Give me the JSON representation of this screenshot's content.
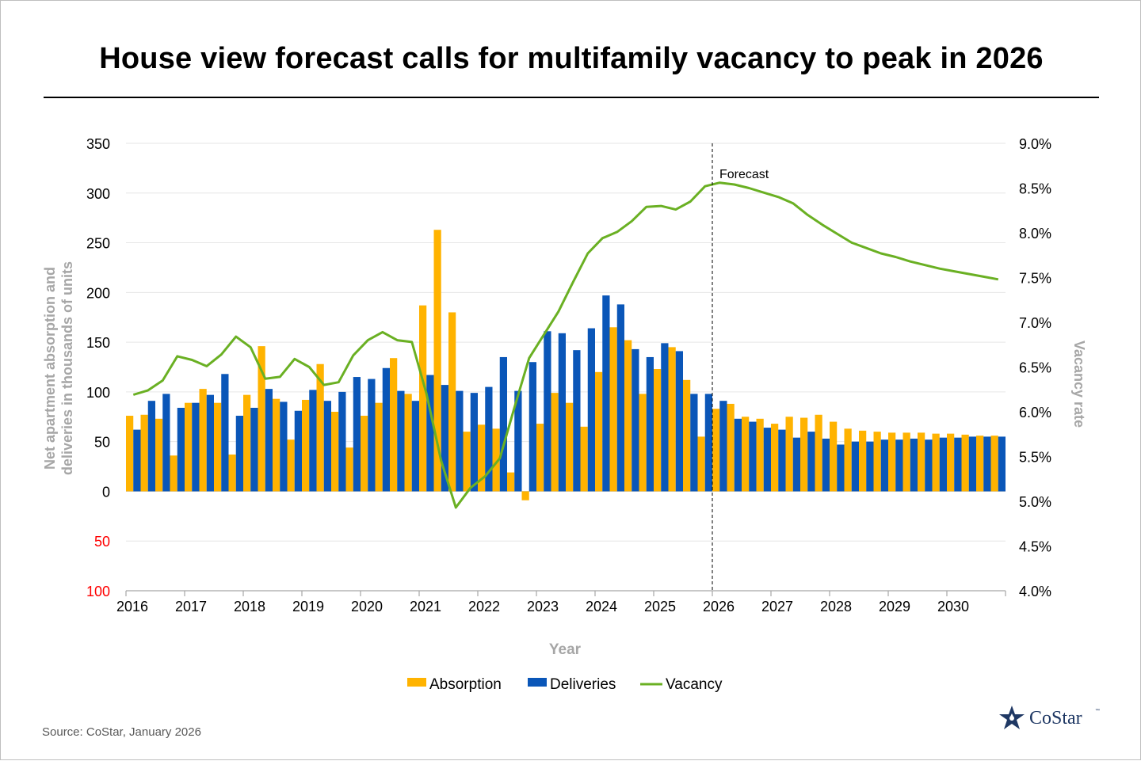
{
  "title": "House view forecast calls for multifamily vacancy to peak in 2026",
  "source": "Source: CoStar, January 2026",
  "logo": {
    "text": "CoStar",
    "tm": "™"
  },
  "colors": {
    "absorption": "#FFB300",
    "deliveries": "#0A56B8",
    "vacancy": "#6AB023",
    "negative_tick": "#FF0000",
    "axis_title": "#A6A6A6",
    "logo": "#1F3864"
  },
  "chart_data": {
    "type": "bar",
    "xlabel": "Year",
    "ylabel": "Net apartment absorption and deliveries in thousands of units",
    "y2label": "Vacancy rate",
    "ylim": [
      -100,
      350
    ],
    "yticks": [
      350,
      300,
      250,
      200,
      150,
      100,
      50,
      0,
      -50,
      -100
    ],
    "ytick_labels": [
      "350",
      "300",
      "250",
      "200",
      "150",
      "100",
      "50",
      "0",
      "50",
      "100"
    ],
    "y2lim": [
      4.0,
      9.0
    ],
    "y2tick_labels": [
      "9.0%",
      "8.5%",
      "8.0%",
      "7.5%",
      "7.0%",
      "6.5%",
      "6.0%",
      "5.5%",
      "5.0%",
      "4.5%",
      "4.0%"
    ],
    "x_tick_labels": [
      "2016",
      "2017",
      "2018",
      "2019",
      "2020",
      "2021",
      "2022",
      "2023",
      "2024",
      "2025",
      "2026",
      "2027",
      "2028",
      "2029",
      "2030"
    ],
    "forecast_label": "Forecast",
    "forecast_start_quarter": 40,
    "legend": {
      "position": "bottom",
      "entries": [
        "Absorption",
        "Deliveries",
        "Vacancy"
      ]
    },
    "grid": true,
    "quarters_per_year": 4,
    "series": [
      {
        "name": "Absorption",
        "type": "bar",
        "values": [
          76,
          77,
          73,
          36,
          89,
          103,
          89,
          37,
          97,
          146,
          93,
          52,
          92,
          128,
          80,
          44,
          76,
          89,
          134,
          98,
          187,
          263,
          180,
          60,
          67,
          63,
          19,
          -9,
          68,
          99,
          89,
          65,
          120,
          165,
          152,
          98,
          123,
          145,
          112,
          55,
          83,
          88,
          75,
          73,
          68,
          75,
          74,
          77,
          70,
          63,
          61,
          60,
          59,
          59,
          59,
          58,
          58,
          57,
          56,
          56
        ]
      },
      {
        "name": "Deliveries",
        "type": "bar",
        "values": [
          62,
          91,
          98,
          84,
          89,
          97,
          118,
          76,
          84,
          103,
          90,
          81,
          102,
          91,
          100,
          115,
          113,
          124,
          101,
          91,
          117,
          107,
          101,
          99,
          105,
          135,
          101,
          130,
          161,
          159,
          142,
          164,
          197,
          188,
          143,
          135,
          149,
          141,
          98,
          98,
          91,
          73,
          70,
          64,
          62,
          54,
          60,
          53,
          47,
          50,
          50,
          52,
          52,
          53,
          52,
          54,
          54,
          55,
          55,
          55
        ]
      },
      {
        "name": "Vacancy",
        "type": "line",
        "values": [
          6.19,
          6.24,
          6.35,
          6.62,
          6.58,
          6.51,
          6.64,
          6.84,
          6.72,
          6.37,
          6.39,
          6.59,
          6.5,
          6.3,
          6.33,
          6.63,
          6.8,
          6.89,
          6.8,
          6.78,
          6.2,
          5.45,
          4.93,
          5.15,
          5.28,
          5.48,
          6.05,
          6.6,
          6.86,
          7.12,
          7.45,
          7.77,
          7.94,
          8.01,
          8.13,
          8.29,
          8.3,
          8.26,
          8.35,
          8.52,
          8.56,
          8.54,
          8.5,
          8.45,
          8.4,
          8.33,
          8.2,
          8.09,
          7.99,
          7.89,
          7.83,
          7.77,
          7.73,
          7.68,
          7.64,
          7.6,
          7.57,
          7.54,
          7.51,
          7.48
        ]
      }
    ]
  }
}
